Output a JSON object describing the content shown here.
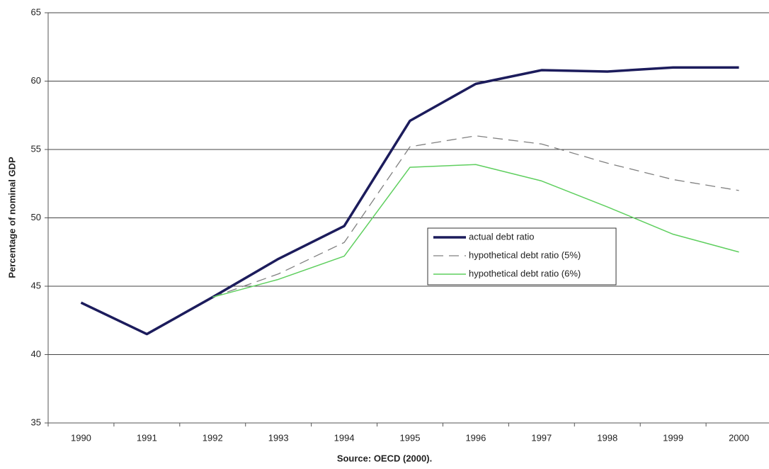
{
  "chart_data": {
    "type": "line",
    "x_label": "Source: OECD (2000).",
    "y_label": "Percentage of nominal GDP",
    "categories": [
      "1990",
      "1991",
      "1992",
      "1993",
      "1994",
      "1995",
      "1996",
      "1997",
      "1998",
      "1999",
      "2000"
    ],
    "series": [
      {
        "name": "actual debt ratio",
        "color": "#1c1c5c",
        "values": [
          43.8,
          41.5,
          44.2,
          47.0,
          49.4,
          57.1,
          59.8,
          60.8,
          60.7,
          61.0,
          61.0
        ]
      },
      {
        "name": "hypothetical debt ratio (5%)",
        "color": "#808080",
        "values": [
          null,
          null,
          44.2,
          45.9,
          48.2,
          55.2,
          56.0,
          55.4,
          54.0,
          52.8,
          52.0
        ]
      },
      {
        "name": "hypothetical debt ratio (6%)",
        "color": "#5fcf5f",
        "values": [
          null,
          null,
          44.2,
          45.5,
          47.2,
          53.7,
          53.9,
          52.7,
          50.8,
          48.8,
          47.5
        ]
      }
    ],
    "ylim": [
      35,
      65
    ],
    "yticks": [
      35,
      40,
      45,
      50,
      55,
      60,
      65
    ],
    "grid": true
  }
}
